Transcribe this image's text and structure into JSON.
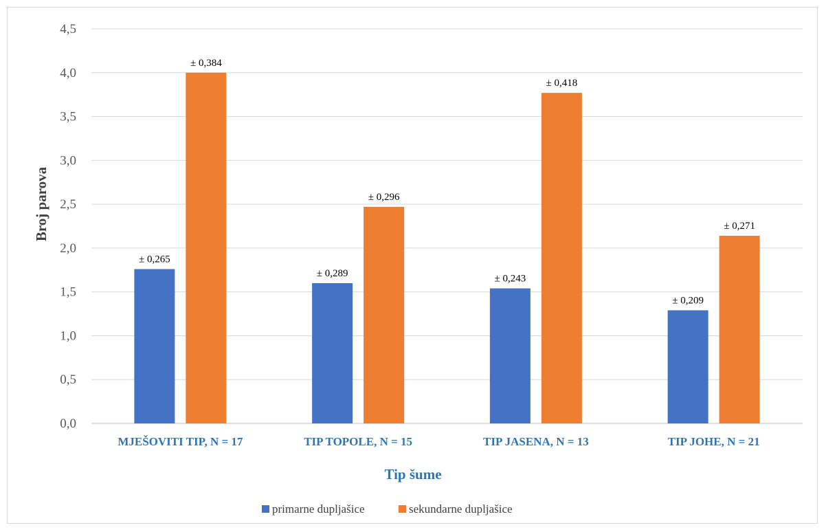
{
  "chart_data": {
    "type": "bar",
    "title": "",
    "xlabel": "Tip šume",
    "ylabel": "Broj parova",
    "ylim": [
      0,
      4.5
    ],
    "ytick_step": 0.5,
    "yticks": [
      "0,0",
      "0,5",
      "1,0",
      "1,5",
      "2,0",
      "2,5",
      "3,0",
      "3,5",
      "4,0",
      "4,5"
    ],
    "grid": true,
    "legend_position": "bottom",
    "categories": [
      "MJEŠOVITI TIP, N = 17",
      "TIP TOPOLE, N = 15",
      "TIP JASENA, N = 13",
      "TIP JOHE, N = 21"
    ],
    "series": [
      {
        "name": "primarne dupljašice",
        "color": "#4472c4",
        "values": [
          1.76,
          1.6,
          1.54,
          1.29
        ],
        "labels": [
          "± 0,265",
          "± 0,289",
          "± 0,243",
          "± 0,209"
        ]
      },
      {
        "name": "sekundarne dupljašice",
        "color": "#ed7d31",
        "values": [
          4.0,
          2.47,
          3.77,
          2.14
        ],
        "labels": [
          "± 0,384",
          "± 0,296",
          "± 0,418",
          "± 0,271"
        ]
      }
    ]
  }
}
